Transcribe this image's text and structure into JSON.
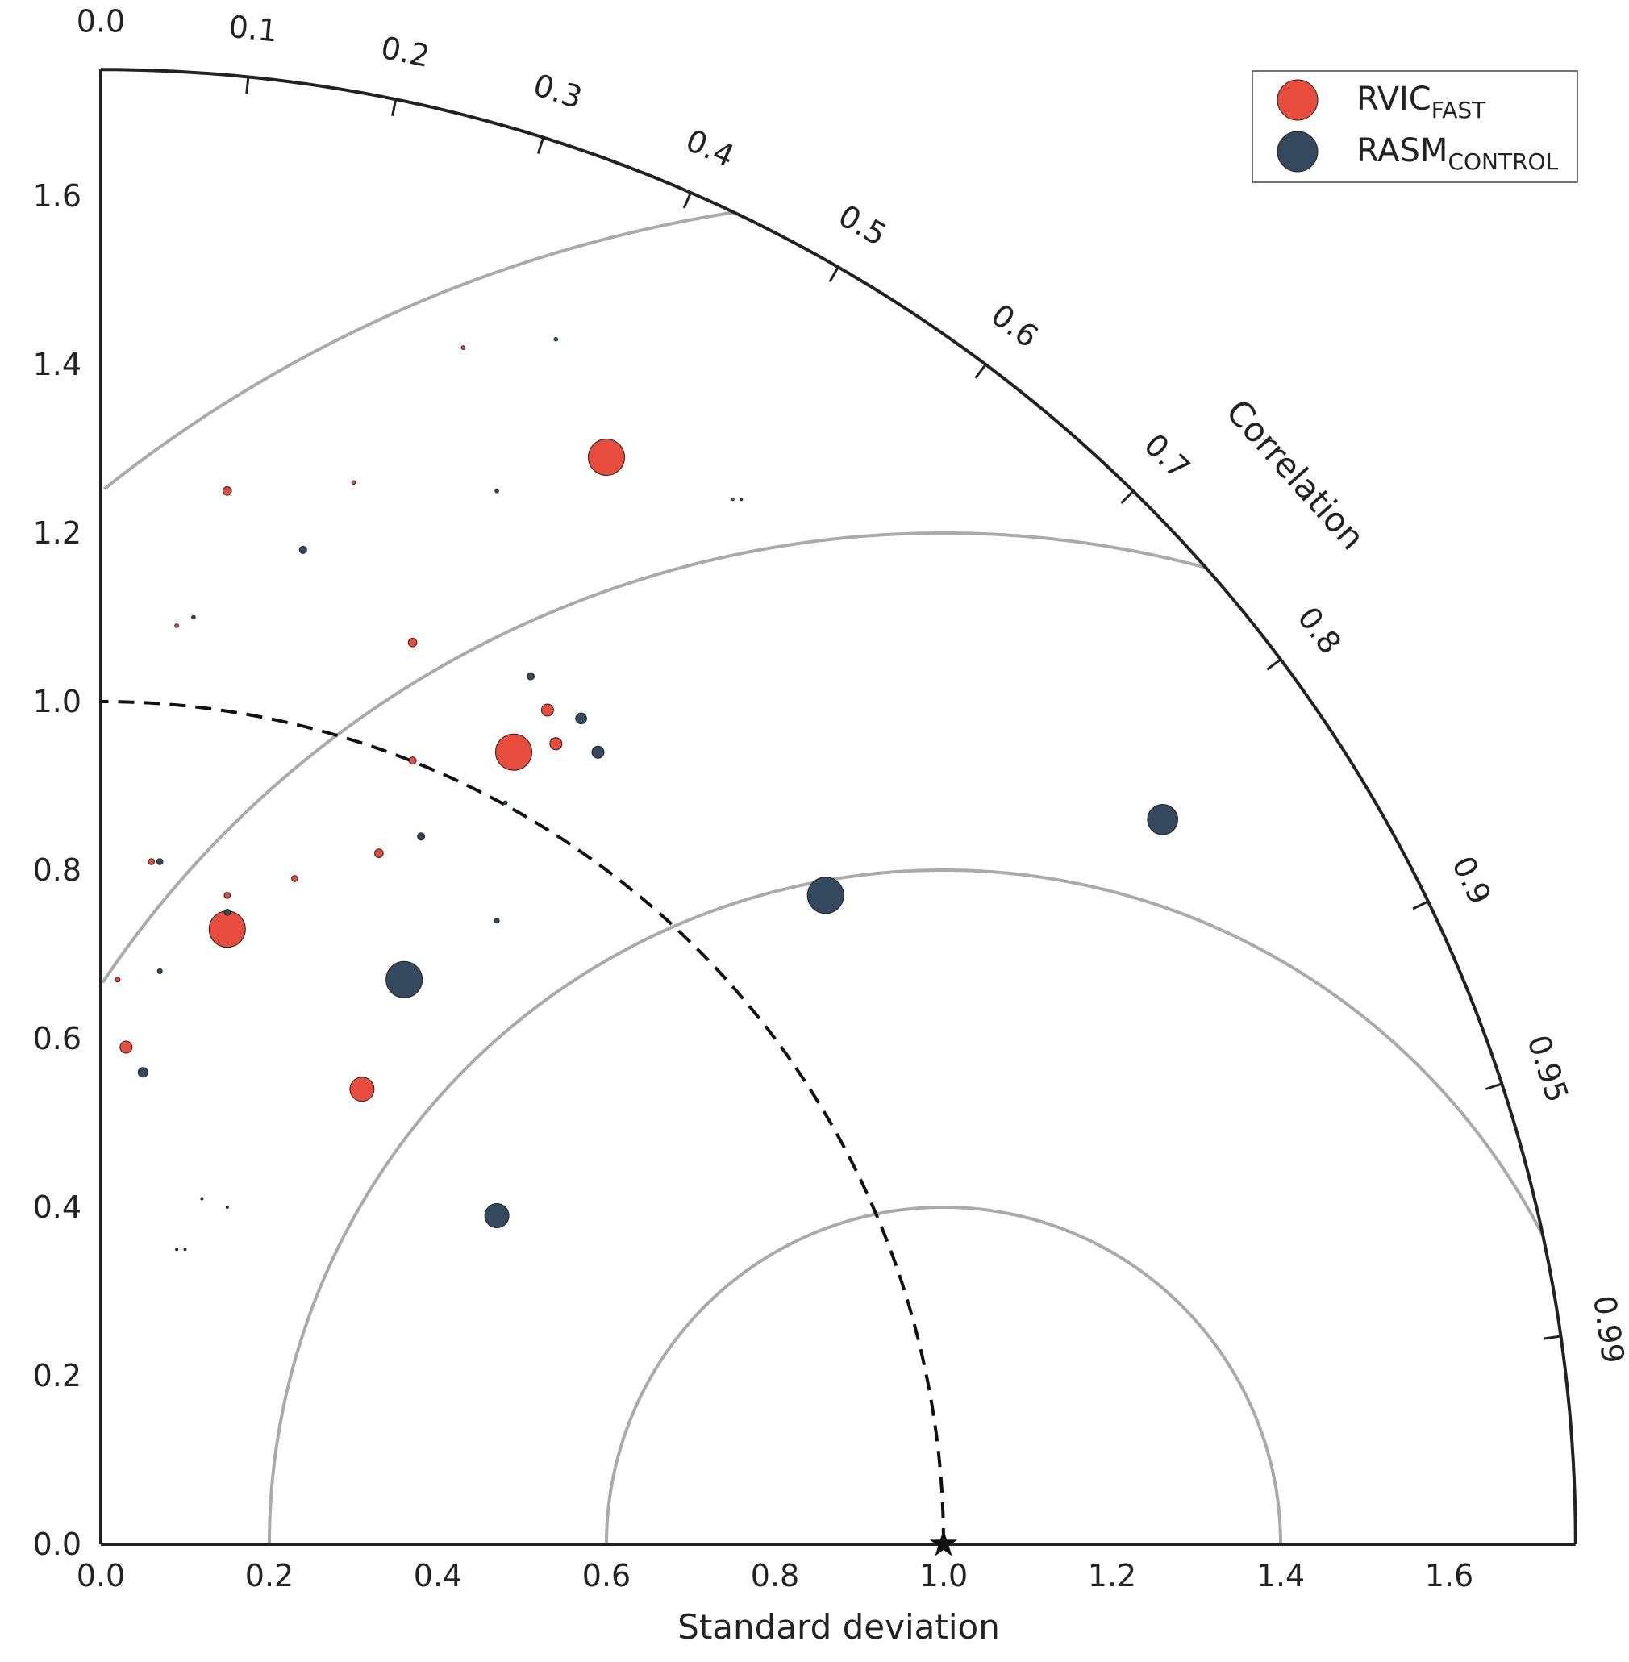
{
  "chart_data": {
    "type": "scatter",
    "subtype": "taylor-diagram",
    "xlabel": "Standard deviation",
    "corr_axis_label": "Correlation",
    "std_ticks": [
      "0.0",
      "0.2",
      "0.4",
      "0.6",
      "0.8",
      "1.0",
      "1.2",
      "1.4",
      "1.6"
    ],
    "std_tick_values": [
      0.0,
      0.2,
      0.4,
      0.6,
      0.8,
      1.0,
      1.2,
      1.4,
      1.6
    ],
    "corr_ticks": [
      "0.0",
      "0.1",
      "0.2",
      "0.3",
      "0.4",
      "0.5",
      "0.6",
      "0.7",
      "0.8",
      "0.9",
      "0.95",
      "0.99"
    ],
    "corr_tick_values": [
      0.0,
      0.1,
      0.2,
      0.3,
      0.4,
      0.5,
      0.6,
      0.7,
      0.8,
      0.9,
      0.95,
      0.99
    ],
    "std_max": 1.75,
    "reference_std": 1.0,
    "rms_contours": [
      0.4,
      0.8,
      1.2,
      1.6
    ],
    "legend_position": "top-right",
    "colors": {
      "rvic": "#e74c3c",
      "rasm": "#34495e",
      "contour": "#aaaaaa",
      "frame": "#222222"
    },
    "series": [
      {
        "name": "RVIC",
        "name_sub": "FAST",
        "color": "#e74c3c",
        "points": [
          {
            "x": 0.6,
            "y": 1.29,
            "size": 3
          },
          {
            "x": 0.49,
            "y": 0.94,
            "size": 3
          },
          {
            "x": 0.15,
            "y": 0.73,
            "size": 3
          },
          {
            "x": 0.31,
            "y": 0.54,
            "size": 2
          },
          {
            "x": 0.54,
            "y": 0.95,
            "size": 1
          },
          {
            "x": 0.53,
            "y": 0.99,
            "size": 1
          },
          {
            "x": 0.03,
            "y": 0.59,
            "size": 1
          },
          {
            "x": 0.15,
            "y": 1.25,
            "size": 0.7
          },
          {
            "x": 0.37,
            "y": 1.07,
            "size": 0.7
          },
          {
            "x": 0.33,
            "y": 0.82,
            "size": 0.7
          },
          {
            "x": 0.37,
            "y": 0.93,
            "size": 0.6
          },
          {
            "x": 0.23,
            "y": 0.79,
            "size": 0.5
          },
          {
            "x": 0.15,
            "y": 0.77,
            "size": 0.5
          },
          {
            "x": 0.06,
            "y": 0.81,
            "size": 0.5
          },
          {
            "x": 0.02,
            "y": 0.67,
            "size": 0.4
          },
          {
            "x": 0.43,
            "y": 1.42,
            "size": 0.3
          },
          {
            "x": 0.3,
            "y": 1.26,
            "size": 0.3
          },
          {
            "x": 0.09,
            "y": 1.09,
            "size": 0.3
          },
          {
            "x": 0.75,
            "y": 1.24,
            "size": 0.2
          },
          {
            "x": 0.12,
            "y": 0.41,
            "size": 0.2
          },
          {
            "x": 0.1,
            "y": 0.35,
            "size": 0.2
          }
        ]
      },
      {
        "name": "RASM",
        "name_sub": "CONTROL",
        "color": "#34495e",
        "points": [
          {
            "x": 1.26,
            "y": 0.86,
            "size": 2.5
          },
          {
            "x": 0.86,
            "y": 0.77,
            "size": 3
          },
          {
            "x": 0.36,
            "y": 0.67,
            "size": 3
          },
          {
            "x": 0.47,
            "y": 0.39,
            "size": 2
          },
          {
            "x": 0.59,
            "y": 0.94,
            "size": 1
          },
          {
            "x": 0.57,
            "y": 0.98,
            "size": 0.9
          },
          {
            "x": 0.05,
            "y": 0.56,
            "size": 0.8
          },
          {
            "x": 0.24,
            "y": 1.18,
            "size": 0.6
          },
          {
            "x": 0.51,
            "y": 1.03,
            "size": 0.6
          },
          {
            "x": 0.38,
            "y": 0.84,
            "size": 0.6
          },
          {
            "x": 0.07,
            "y": 0.81,
            "size": 0.5
          },
          {
            "x": 0.15,
            "y": 0.75,
            "size": 0.5
          },
          {
            "x": 0.47,
            "y": 0.74,
            "size": 0.4
          },
          {
            "x": 0.07,
            "y": 0.68,
            "size": 0.4
          },
          {
            "x": 0.48,
            "y": 0.88,
            "size": 0.3
          },
          {
            "x": 0.54,
            "y": 1.43,
            "size": 0.3
          },
          {
            "x": 0.47,
            "y": 1.25,
            "size": 0.3
          },
          {
            "x": 0.11,
            "y": 1.1,
            "size": 0.3
          },
          {
            "x": 0.76,
            "y": 1.24,
            "size": 0.2
          },
          {
            "x": 0.15,
            "y": 0.4,
            "size": 0.2
          },
          {
            "x": 0.09,
            "y": 0.35,
            "size": 0.2
          }
        ]
      }
    ]
  }
}
